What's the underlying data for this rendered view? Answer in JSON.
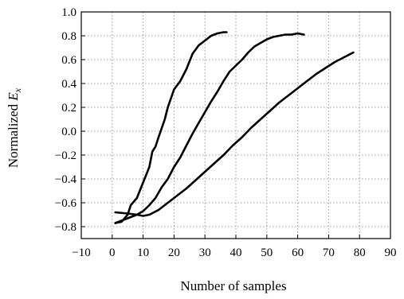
{
  "chart_data": {
    "type": "line",
    "title": "",
    "xlabel": "Number of samples",
    "ylabel_prefix": "Normalized ",
    "ylabel_var": "E",
    "ylabel_sub": "x",
    "xlim": [
      -10,
      90
    ],
    "ylim": [
      -0.9,
      1.0
    ],
    "xticks": [
      -10,
      0,
      10,
      20,
      30,
      40,
      50,
      60,
      70,
      80,
      90
    ],
    "xtick_labels": [
      "−10",
      "0",
      "10",
      "20",
      "30",
      "40",
      "50",
      "60",
      "70",
      "80",
      "90"
    ],
    "yticks": [
      -0.8,
      -0.6,
      -0.4,
      -0.2,
      0.0,
      0.2,
      0.4,
      0.6,
      0.8,
      1.0
    ],
    "ytick_labels": [
      "−0.8",
      "−0.6",
      "−0.4",
      "−0.2",
      "0.0",
      "0.2",
      "0.4",
      "0.6",
      "0.8",
      "1.0"
    ],
    "grid": true,
    "legend": "none",
    "series": [
      {
        "color": "#000000",
        "x": [
          1,
          3,
          5,
          6,
          8,
          10,
          12,
          13,
          14,
          15,
          17,
          18,
          20,
          22,
          24,
          26,
          28,
          30,
          32,
          34,
          36,
          37
        ],
        "y": [
          -0.77,
          -0.76,
          -0.7,
          -0.62,
          -0.56,
          -0.43,
          -0.3,
          -0.17,
          -0.13,
          -0.05,
          0.1,
          0.2,
          0.35,
          0.42,
          0.52,
          0.65,
          0.72,
          0.76,
          0.8,
          0.82,
          0.83,
          0.83
        ]
      },
      {
        "color": "#000000",
        "x": [
          1,
          4,
          6,
          8,
          10,
          12,
          14,
          16,
          18,
          20,
          22,
          24,
          26,
          28,
          30,
          32,
          34,
          36,
          38,
          40,
          42,
          44,
          46,
          48,
          50,
          52,
          54,
          56,
          58,
          60,
          62
        ],
        "y": [
          -0.77,
          -0.74,
          -0.72,
          -0.7,
          -0.67,
          -0.62,
          -0.56,
          -0.47,
          -0.4,
          -0.3,
          -0.22,
          -0.12,
          -0.02,
          0.07,
          0.16,
          0.25,
          0.33,
          0.42,
          0.5,
          0.55,
          0.6,
          0.66,
          0.71,
          0.74,
          0.77,
          0.79,
          0.8,
          0.81,
          0.81,
          0.82,
          0.81
        ]
      },
      {
        "color": "#000000",
        "x": [
          1,
          5,
          8,
          10,
          12,
          15,
          18,
          21,
          24,
          27,
          30,
          33,
          36,
          39,
          42,
          45,
          48,
          51,
          54,
          57,
          60,
          63,
          66,
          69,
          72,
          75,
          78
        ],
        "y": [
          -0.68,
          -0.69,
          -0.7,
          -0.71,
          -0.7,
          -0.66,
          -0.6,
          -0.54,
          -0.48,
          -0.41,
          -0.34,
          -0.27,
          -0.2,
          -0.12,
          -0.05,
          0.03,
          0.1,
          0.17,
          0.24,
          0.3,
          0.36,
          0.42,
          0.48,
          0.53,
          0.58,
          0.62,
          0.66
        ]
      }
    ]
  }
}
